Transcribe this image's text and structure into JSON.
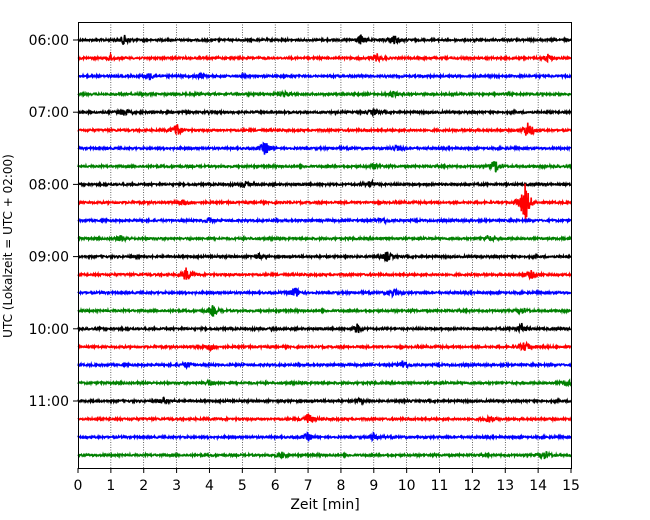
{
  "chart_data": {
    "type": "line",
    "title": "",
    "xlabel": "Zeit  [min]",
    "ylabel": "UTC (Lokalzeit = UTC + 02:00)",
    "xlim": [
      0,
      15
    ],
    "x_ticks": [
      "0",
      "1",
      "2",
      "3",
      "4",
      "5",
      "6",
      "7",
      "8",
      "9",
      "10",
      "11",
      "12",
      "13",
      "14",
      "15"
    ],
    "y_ticks": [
      "06:00",
      "07:00",
      "08:00",
      "09:00",
      "10:00",
      "11:00"
    ],
    "grid": "vertical dotted",
    "trace_interval_minutes": 15,
    "trace_start_time": "06:00",
    "trace_colors": [
      "#000000",
      "#ff0000",
      "#0000ff",
      "#008000"
    ],
    "series": [
      {
        "start": "06:00",
        "color": "#000000",
        "events": [
          [
            1.4,
            0.5
          ],
          [
            8.6,
            0.5
          ],
          [
            9.6,
            0.6
          ]
        ]
      },
      {
        "start": "06:15",
        "color": "#ff0000",
        "events": [
          [
            1.0,
            0.3
          ],
          [
            9.1,
            0.4
          ],
          [
            14.3,
            0.4
          ]
        ]
      },
      {
        "start": "06:30",
        "color": "#0000ff",
        "events": [
          [
            2.2,
            0.4
          ],
          [
            3.7,
            0.3
          ]
        ]
      },
      {
        "start": "06:45",
        "color": "#008000",
        "events": [
          [
            6.3,
            0.3
          ],
          [
            9.6,
            0.3
          ]
        ]
      },
      {
        "start": "07:00",
        "color": "#000000",
        "events": [
          [
            1.4,
            0.4
          ],
          [
            9.0,
            0.3
          ]
        ]
      },
      {
        "start": "07:15",
        "color": "#ff0000",
        "events": [
          [
            3.0,
            0.7
          ],
          [
            13.7,
            0.9
          ]
        ]
      },
      {
        "start": "07:30",
        "color": "#0000ff",
        "events": [
          [
            5.7,
            0.7
          ],
          [
            9.7,
            0.3
          ]
        ]
      },
      {
        "start": "07:45",
        "color": "#008000",
        "events": [
          [
            12.7,
            0.7
          ],
          [
            9.0,
            0.3
          ]
        ]
      },
      {
        "start": "08:00",
        "color": "#000000",
        "events": [
          [
            5.1,
            0.3
          ],
          [
            8.9,
            0.4
          ]
        ]
      },
      {
        "start": "08:15",
        "color": "#ff0000",
        "events": [
          [
            3.2,
            0.4
          ],
          [
            13.6,
            2.2
          ]
        ]
      },
      {
        "start": "08:30",
        "color": "#0000ff",
        "events": [
          [
            4.0,
            0.3
          ],
          [
            9.3,
            0.3
          ]
        ]
      },
      {
        "start": "08:45",
        "color": "#008000",
        "events": [
          [
            1.3,
            0.3
          ],
          [
            12.5,
            0.3
          ]
        ]
      },
      {
        "start": "09:00",
        "color": "#000000",
        "events": [
          [
            5.5,
            0.3
          ],
          [
            9.4,
            0.5
          ]
        ]
      },
      {
        "start": "09:15",
        "color": "#ff0000",
        "events": [
          [
            3.3,
            0.7
          ],
          [
            13.8,
            0.4
          ]
        ]
      },
      {
        "start": "09:30",
        "color": "#0000ff",
        "events": [
          [
            6.6,
            0.6
          ],
          [
            9.6,
            0.4
          ]
        ]
      },
      {
        "start": "09:45",
        "color": "#008000",
        "events": [
          [
            4.1,
            0.5
          ],
          [
            13.5,
            0.3
          ]
        ]
      },
      {
        "start": "10:00",
        "color": "#000000",
        "events": [
          [
            8.5,
            0.5
          ],
          [
            13.5,
            0.5
          ]
        ]
      },
      {
        "start": "10:15",
        "color": "#ff0000",
        "events": [
          [
            4.0,
            0.4
          ],
          [
            13.6,
            0.5
          ]
        ]
      },
      {
        "start": "10:30",
        "color": "#0000ff",
        "events": [
          [
            3.3,
            0.3
          ],
          [
            9.9,
            0.5
          ]
        ]
      },
      {
        "start": "10:45",
        "color": "#008000",
        "events": [
          [
            4.0,
            0.3
          ],
          [
            14.9,
            0.3
          ]
        ]
      },
      {
        "start": "11:00",
        "color": "#000000",
        "events": [
          [
            2.6,
            0.3
          ],
          [
            8.6,
            0.3
          ]
        ]
      },
      {
        "start": "11:15",
        "color": "#ff0000",
        "events": [
          [
            7.0,
            0.6
          ],
          [
            12.5,
            0.3
          ]
        ]
      },
      {
        "start": "11:30",
        "color": "#0000ff",
        "events": [
          [
            7.0,
            0.4
          ],
          [
            9.0,
            0.4
          ]
        ]
      },
      {
        "start": "11:45",
        "color": "#008000",
        "events": [
          [
            6.2,
            0.3
          ],
          [
            14.2,
            0.4
          ]
        ]
      }
    ]
  }
}
